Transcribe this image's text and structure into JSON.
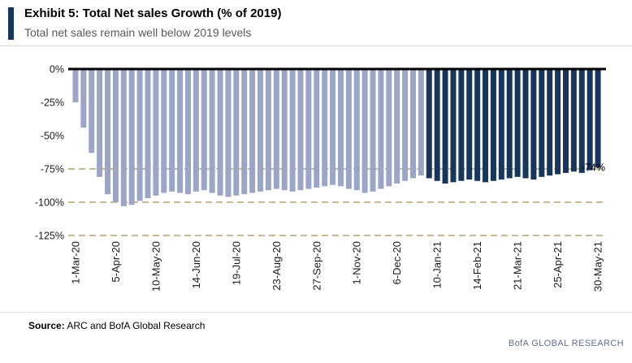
{
  "header": {
    "exhibit_title": "Exhibit 5: Total Net sales Growth (% of 2019)",
    "subtitle": "Total net sales remain well below 2019 levels"
  },
  "chart_data": {
    "type": "bar",
    "title": "Exhibit 5: Total Net sales Growth (% of 2019)",
    "xlabel": "",
    "ylabel": "",
    "ylim": [
      -125,
      0
    ],
    "y_ticks": [
      0,
      -25,
      -50,
      -75,
      -100,
      -125
    ],
    "y_tick_labels": [
      "0%",
      "-25%",
      "-50%",
      "-75%",
      "-100%",
      "-125%"
    ],
    "dashed_gridlines": [
      -75,
      -100,
      -125
    ],
    "x_tick_labels": [
      "1-Mar-20",
      "5-Apr-20",
      "10-May-20",
      "14-Jun-20",
      "19-Jul-20",
      "23-Aug-20",
      "27-Sep-20",
      "1-Nov-20",
      "6-Dec-20",
      "10-Jan-21",
      "14-Feb-21",
      "21-Mar-21",
      "25-Apr-21",
      "30-May-21"
    ],
    "tick_every": 5,
    "values": [
      -25,
      -44,
      -63,
      -81,
      -94,
      -100,
      -103,
      -102,
      -99,
      -97,
      -95,
      -93,
      -92,
      -93,
      -94,
      -92,
      -91,
      -93,
      -95,
      -96,
      -95,
      -94,
      -93,
      -92,
      -91,
      -90,
      -91,
      -92,
      -91,
      -90,
      -89,
      -88,
      -87,
      -88,
      -90,
      -91,
      -93,
      -92,
      -90,
      -88,
      -86,
      -84,
      -82,
      -80,
      -82,
      -84,
      -86,
      -85,
      -84,
      -83,
      -84,
      -85,
      -84,
      -83,
      -82,
      -81,
      -82,
      -83,
      -81,
      -80,
      -79,
      -78,
      -77,
      -78,
      -76,
      -74
    ],
    "dark_from_index": 44,
    "annotation": {
      "text": "-74%",
      "value": -74
    },
    "colors": {
      "bar_2020": "#9aa5c7",
      "bar_2021": "#17365d",
      "gridline_dash": "#b6a36b",
      "zero_line": "#000000",
      "axis_text": "#1a1a1a"
    },
    "legend": "none",
    "grid": "dashed horizontal at -75%, -100%, -125%"
  },
  "footer": {
    "source_label": "Source:",
    "source_text": " ARC and BofA Global Research",
    "brand": "BofA GLOBAL RESEARCH"
  }
}
